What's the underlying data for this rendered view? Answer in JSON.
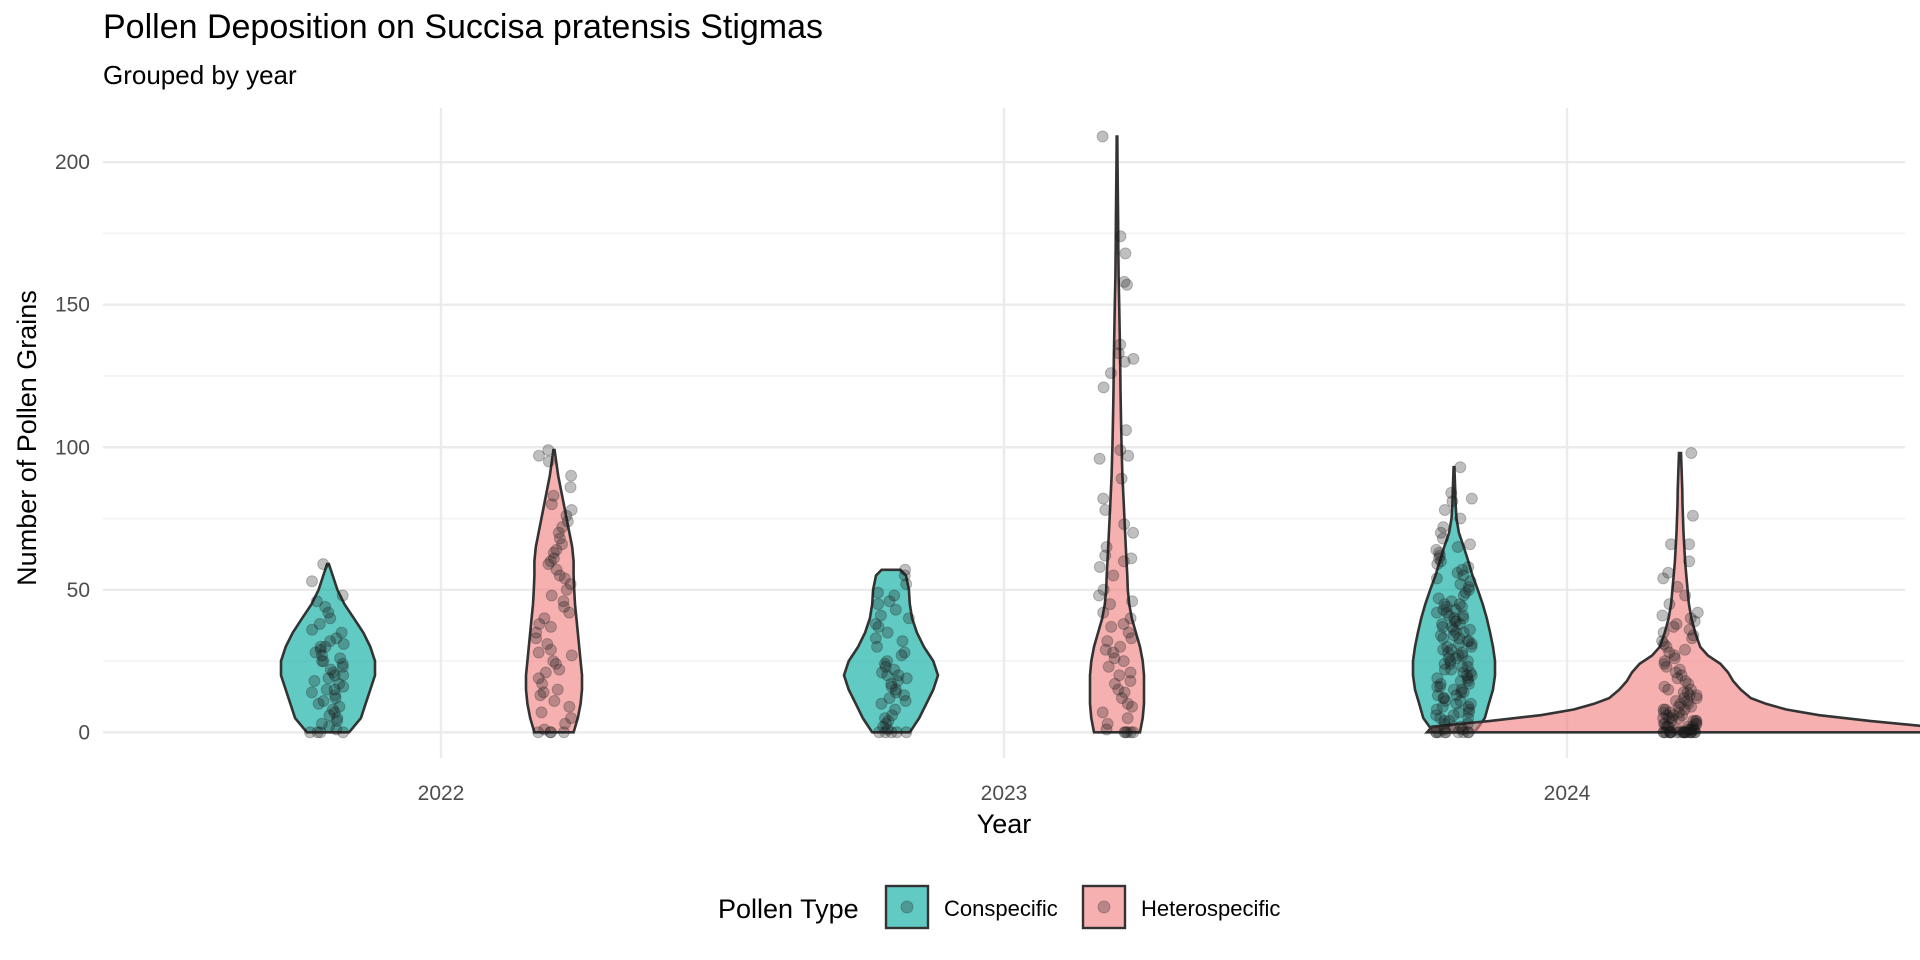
{
  "chart_data": {
    "type": "violin",
    "title": "Pollen Deposition on Succisa pratensis Stigmas",
    "subtitle": "Grouped by year",
    "xlabel": "Year",
    "ylabel": "Number of Pollen Grains",
    "categories": [
      "2022",
      "2023",
      "2024"
    ],
    "y_ticks": [
      "0",
      "50",
      "100",
      "150",
      "200"
    ],
    "ylim": [
      -9,
      219
    ],
    "grid": true,
    "legend": {
      "title": "Pollen Type",
      "position": "bottom",
      "entries": [
        "Conspecific",
        "Heterospecific"
      ]
    },
    "series": [
      {
        "name": "Conspecific",
        "color": "#00A99D",
        "violins": [
          {
            "year": "2022",
            "density": [
              [
                0,
                0.45
              ],
              [
                5,
                0.7
              ],
              [
                10,
                0.8
              ],
              [
                15,
                0.9
              ],
              [
                20,
                1.0
              ],
              [
                25,
                1.0
              ],
              [
                30,
                0.9
              ],
              [
                35,
                0.75
              ],
              [
                40,
                0.55
              ],
              [
                45,
                0.35
              ],
              [
                50,
                0.2
              ],
              [
                55,
                0.1
              ],
              [
                59,
                0.02
              ]
            ],
            "points": [
              0,
              0,
              0,
              0,
              1,
              2,
              3,
              4,
              5,
              6,
              7,
              8,
              9,
              10,
              11,
              12,
              13,
              14,
              15,
              15,
              16,
              17,
              18,
              19,
              20,
              20,
              21,
              22,
              23,
              24,
              25,
              25,
              26,
              27,
              28,
              29,
              30,
              30,
              31,
              32,
              33,
              35,
              36,
              38,
              40,
              42,
              44,
              46,
              48,
              53,
              59
            ]
          },
          {
            "year": "2023",
            "density": [
              [
                0,
                0.4
              ],
              [
                5,
                0.6
              ],
              [
                10,
                0.75
              ],
              [
                15,
                0.9
              ],
              [
                20,
                1.0
              ],
              [
                25,
                0.9
              ],
              [
                30,
                0.7
              ],
              [
                35,
                0.55
              ],
              [
                40,
                0.45
              ],
              [
                45,
                0.4
              ],
              [
                50,
                0.38
              ],
              [
                55,
                0.32
              ],
              [
                57,
                0.2
              ]
            ],
            "points": [
              0,
              0,
              0,
              0,
              0,
              1,
              2,
              3,
              4,
              5,
              6,
              8,
              10,
              11,
              12,
              13,
              14,
              15,
              16,
              17,
              18,
              19,
              20,
              20,
              21,
              22,
              23,
              24,
              25,
              27,
              28,
              30,
              32,
              33,
              35,
              37,
              38,
              40,
              41,
              43,
              45,
              46,
              48,
              49,
              52,
              55,
              57
            ]
          },
          {
            "year": "2024",
            "density": [
              [
                0,
                0.5
              ],
              [
                5,
                0.75
              ],
              [
                10,
                0.85
              ],
              [
                15,
                0.95
              ],
              [
                20,
                1.0
              ],
              [
                25,
                1.0
              ],
              [
                30,
                0.95
              ],
              [
                35,
                0.88
              ],
              [
                40,
                0.8
              ],
              [
                45,
                0.7
              ],
              [
                50,
                0.58
              ],
              [
                55,
                0.45
              ],
              [
                60,
                0.35
              ],
              [
                65,
                0.24
              ],
              [
                70,
                0.12
              ],
              [
                75,
                0.06
              ],
              [
                80,
                0.04
              ],
              [
                85,
                0.03
              ],
              [
                93,
                0.01
              ]
            ],
            "points": [
              0,
              0,
              0,
              0,
              0,
              0,
              0,
              0,
              0,
              1,
              1,
              2,
              2,
              3,
              3,
              4,
              4,
              5,
              5,
              6,
              6,
              7,
              7,
              8,
              8,
              9,
              9,
              10,
              10,
              11,
              11,
              12,
              12,
              13,
              13,
              14,
              14,
              15,
              15,
              16,
              16,
              17,
              17,
              18,
              18,
              19,
              19,
              20,
              20,
              21,
              21,
              22,
              22,
              23,
              23,
              24,
              24,
              25,
              25,
              26,
              26,
              27,
              27,
              28,
              28,
              29,
              29,
              30,
              30,
              31,
              31,
              32,
              32,
              33,
              33,
              34,
              34,
              35,
              35,
              36,
              36,
              37,
              37,
              38,
              38,
              39,
              39,
              40,
              40,
              41,
              41,
              42,
              42,
              43,
              43,
              44,
              44,
              45,
              45,
              46,
              47,
              48,
              49,
              50,
              51,
              52,
              53,
              54,
              55,
              56,
              57,
              58,
              59,
              60,
              61,
              62,
              63,
              64,
              65,
              66,
              68,
              70,
              72,
              75,
              78,
              81,
              82,
              84,
              93
            ]
          }
        ]
      },
      {
        "name": "Heterospecific",
        "color": "#F08080",
        "violins": [
          {
            "year": "2022",
            "density": [
              [
                0,
                0.7
              ],
              [
                5,
                0.85
              ],
              [
                10,
                0.95
              ],
              [
                15,
                1.0
              ],
              [
                20,
                1.0
              ],
              [
                25,
                0.95
              ],
              [
                30,
                0.9
              ],
              [
                35,
                0.85
              ],
              [
                40,
                0.8
              ],
              [
                45,
                0.75
              ],
              [
                50,
                0.72
              ],
              [
                55,
                0.7
              ],
              [
                60,
                0.7
              ],
              [
                65,
                0.65
              ],
              [
                70,
                0.55
              ],
              [
                75,
                0.45
              ],
              [
                80,
                0.35
              ],
              [
                85,
                0.25
              ],
              [
                90,
                0.15
              ],
              [
                95,
                0.08
              ],
              [
                99,
                0.02
              ]
            ],
            "points": [
              0,
              0,
              0,
              0,
              1,
              3,
              5,
              7,
              9,
              11,
              13,
              14,
              15,
              17,
              19,
              21,
              22,
              24,
              25,
              27,
              28,
              29,
              31,
              33,
              35,
              37,
              38,
              40,
              42,
              44,
              46,
              48,
              50,
              52,
              54,
              55,
              57,
              59,
              60,
              61,
              63,
              64,
              66,
              68,
              70,
              72,
              74,
              76,
              78,
              80,
              83,
              86,
              90,
              95,
              97,
              99
            ]
          },
          {
            "year": "2023",
            "density": [
              [
                0,
                0.85
              ],
              [
                5,
                0.95
              ],
              [
                10,
                1.0
              ],
              [
                15,
                1.0
              ],
              [
                20,
                1.0
              ],
              [
                25,
                0.95
              ],
              [
                30,
                0.85
              ],
              [
                35,
                0.7
              ],
              [
                40,
                0.55
              ],
              [
                45,
                0.45
              ],
              [
                50,
                0.4
              ],
              [
                55,
                0.38
              ],
              [
                60,
                0.35
              ],
              [
                70,
                0.3
              ],
              [
                80,
                0.25
              ],
              [
                90,
                0.2
              ],
              [
                100,
                0.17
              ],
              [
                110,
                0.15
              ],
              [
                120,
                0.13
              ],
              [
                130,
                0.12
              ],
              [
                140,
                0.1
              ],
              [
                150,
                0.08
              ],
              [
                160,
                0.06
              ],
              [
                170,
                0.05
              ],
              [
                180,
                0.04
              ],
              [
                190,
                0.03
              ],
              [
                200,
                0.02
              ],
              [
                209,
                0.01
              ]
            ],
            "points": [
              0,
              0,
              0,
              0,
              0,
              1,
              3,
              5,
              7,
              9,
              10,
              12,
              14,
              15,
              17,
              18,
              20,
              21,
              23,
              25,
              26,
              28,
              29,
              30,
              32,
              33,
              35,
              37,
              38,
              40,
              42,
              45,
              46,
              48,
              50,
              55,
              58,
              60,
              61,
              62,
              65,
              70,
              73,
              78,
              82,
              89,
              96,
              97,
              99,
              106,
              121,
              126,
              130,
              131,
              133,
              136,
              157,
              158,
              168,
              174,
              209
            ]
          },
          {
            "year": "2024",
            "density": [
              [
                0,
                1.0
              ],
              [
                2,
                0.98
              ],
              [
                4,
                0.75
              ],
              [
                6,
                0.55
              ],
              [
                8,
                0.42
              ],
              [
                10,
                0.34
              ],
              [
                12,
                0.28
              ],
              [
                15,
                0.24
              ],
              [
                18,
                0.21
              ],
              [
                21,
                0.19
              ],
              [
                24,
                0.16
              ],
              [
                27,
                0.11
              ],
              [
                30,
                0.08
              ],
              [
                35,
                0.06
              ],
              [
                40,
                0.045
              ],
              [
                45,
                0.035
              ],
              [
                50,
                0.03
              ],
              [
                55,
                0.025
              ],
              [
                60,
                0.02
              ],
              [
                65,
                0.017
              ],
              [
                70,
                0.014
              ],
              [
                75,
                0.012
              ],
              [
                80,
                0.01
              ],
              [
                85,
                0.009
              ],
              [
                90,
                0.007
              ],
              [
                98,
                0.004
              ]
            ],
            "points": [
              0,
              0,
              0,
              0,
              0,
              0,
              0,
              0,
              0,
              0,
              0,
              0,
              0,
              0,
              0,
              0,
              0,
              0,
              0,
              0,
              1,
              1,
              1,
              1,
              1,
              1,
              2,
              2,
              2,
              2,
              2,
              3,
              3,
              3,
              3,
              4,
              4,
              4,
              4,
              5,
              5,
              5,
              5,
              6,
              6,
              6,
              7,
              7,
              7,
              8,
              8,
              8,
              9,
              9,
              10,
              10,
              11,
              11,
              12,
              12,
              13,
              13,
              14,
              14,
              15,
              15,
              16,
              17,
              18,
              19,
              20,
              21,
              22,
              23,
              24,
              25,
              26,
              27,
              28,
              29,
              30,
              31,
              32,
              33,
              34,
              35,
              36,
              37,
              38,
              39,
              40,
              41,
              42,
              45,
              48,
              51,
              54,
              56,
              60,
              66,
              66,
              76,
              98
            ]
          }
        ]
      }
    ]
  }
}
